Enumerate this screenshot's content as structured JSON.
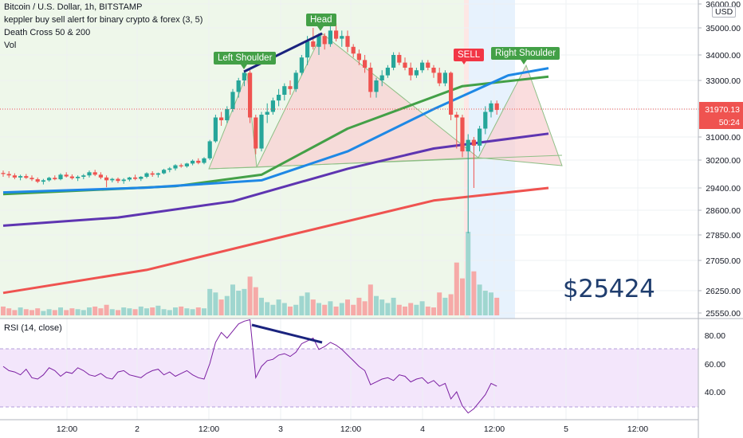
{
  "header": {
    "title": "Bitcoin / U.S. Dollar, 1h, BITSTAMP",
    "indicator_1": "keppler buy sell alert for binary crypto & forex (3, 5)",
    "indicator_2": "Death Cross 50 & 200",
    "indicator_3": "Vol"
  },
  "annotations": {
    "left_shoulder": "Left Shoulder",
    "head": "Head",
    "right_shoulder": "Right Shoulder",
    "sell": "SELL",
    "target_price": "$25424"
  },
  "price_axis": {
    "currency": "USD",
    "current_price": "31970.13",
    "countdown": "50:24"
  },
  "rsi_panel": {
    "label": "RSI (14, close)"
  },
  "colors": {
    "bull": "#26a69a",
    "bear": "#ef5350",
    "ma_green": "#43a047",
    "ma_blue": "#1e88e5",
    "ma_purple": "#5e35b1",
    "ma_red": "#ef5350",
    "divergence": "#1a237e",
    "rsi_line": "#7b1fa2",
    "tag_green": "#43a047",
    "tag_red": "#f23645"
  },
  "chart_data": {
    "type": "candlestick",
    "symbol": "Bitcoin / U.S. Dollar",
    "interval": "1h",
    "exchange": "BITSTAMP",
    "price_axis_ticks": [
      "36000.00",
      "35000.00",
      "34000.00",
      "33000.00",
      "32000.00",
      "31000.00",
      "30200.00",
      "29400.00",
      "28600.00",
      "27850.00",
      "27050.00",
      "26250.00",
      "25550.00"
    ],
    "time_axis_ticks": [
      "12:00",
      "2",
      "12:00",
      "3",
      "12:00",
      "4",
      "12:00",
      "5",
      "12:00"
    ],
    "rsi_ticks": [
      "80.00",
      "60.00",
      "40.00"
    ],
    "ohlc": [
      [
        29830,
        29900,
        29720,
        29800
      ],
      [
        29800,
        29880,
        29690,
        29760
      ],
      [
        29760,
        29820,
        29650,
        29700
      ],
      [
        29700,
        29780,
        29620,
        29740
      ],
      [
        29740,
        29800,
        29660,
        29690
      ],
      [
        29690,
        29760,
        29600,
        29650
      ],
      [
        29650,
        29700,
        29540,
        29580
      ],
      [
        29580,
        29660,
        29500,
        29620
      ],
      [
        29620,
        29720,
        29580,
        29690
      ],
      [
        29690,
        29760,
        29620,
        29650
      ],
      [
        29650,
        29820,
        29620,
        29780
      ],
      [
        29780,
        29850,
        29700,
        29730
      ],
      [
        29730,
        29790,
        29640,
        29680
      ],
      [
        29680,
        29760,
        29600,
        29720
      ],
      [
        29720,
        29800,
        29650,
        29760
      ],
      [
        29760,
        29900,
        29700,
        29850
      ],
      [
        29850,
        29920,
        29740,
        29780
      ],
      [
        29780,
        29850,
        29650,
        29700
      ],
      [
        29700,
        29760,
        29420,
        29620
      ],
      [
        29620,
        29690,
        29560,
        29660
      ],
      [
        29660,
        29700,
        29540,
        29600
      ],
      [
        29600,
        29680,
        29520,
        29640
      ],
      [
        29640,
        29720,
        29590,
        29700
      ],
      [
        29700,
        29780,
        29620,
        29660
      ],
      [
        29660,
        29740,
        29600,
        29720
      ],
      [
        29720,
        29850,
        29680,
        29820
      ],
      [
        29820,
        29880,
        29720,
        29780
      ],
      [
        29780,
        29840,
        29700,
        29820
      ],
      [
        29820,
        29950,
        29790,
        29920
      ],
      [
        29920,
        30000,
        29850,
        29960
      ],
      [
        29960,
        30080,
        29900,
        30050
      ],
      [
        30050,
        30100,
        29980,
        30020
      ],
      [
        30020,
        30120,
        29980,
        30100
      ],
      [
        30100,
        30220,
        30050,
        30180
      ],
      [
        30180,
        30260,
        30080,
        30120
      ],
      [
        30120,
        30300,
        30080,
        30260
      ],
      [
        30260,
        30900,
        30200,
        30850
      ],
      [
        30850,
        31800,
        30800,
        31700
      ],
      [
        31700,
        31900,
        31400,
        31600
      ],
      [
        31600,
        32100,
        31500,
        32000
      ],
      [
        32000,
        32700,
        31900,
        32600
      ],
      [
        32600,
        33100,
        32400,
        33000
      ],
      [
        33000,
        33350,
        32800,
        33300
      ],
      [
        33300,
        33400,
        31500,
        31700
      ],
      [
        31700,
        31800,
        30400,
        30600
      ],
      [
        30600,
        31900,
        30500,
        31800
      ],
      [
        31800,
        32200,
        31500,
        31900
      ],
      [
        31900,
        32400,
        31800,
        32300
      ],
      [
        32300,
        32700,
        32100,
        32500
      ],
      [
        32500,
        32900,
        32300,
        32800
      ],
      [
        32800,
        33000,
        32500,
        32700
      ],
      [
        32700,
        33400,
        32600,
        33300
      ],
      [
        33300,
        34000,
        33200,
        33900
      ],
      [
        33900,
        34700,
        33600,
        34500
      ],
      [
        34500,
        35000,
        34200,
        34300
      ],
      [
        34300,
        34800,
        34000,
        34700
      ],
      [
        34700,
        34800,
        34200,
        34400
      ],
      [
        34400,
        35100,
        34300,
        34900
      ],
      [
        34900,
        35200,
        34500,
        34600
      ],
      [
        34600,
        34900,
        34300,
        34700
      ],
      [
        34700,
        34900,
        34100,
        34300
      ],
      [
        34300,
        34400,
        33900,
        34050
      ],
      [
        34050,
        34200,
        33600,
        33800
      ],
      [
        33800,
        34000,
        33300,
        33500
      ],
      [
        33500,
        33700,
        32400,
        32600
      ],
      [
        32600,
        33100,
        32400,
        33000
      ],
      [
        33000,
        33400,
        32800,
        33200
      ],
      [
        33200,
        33600,
        33100,
        33500
      ],
      [
        33500,
        34100,
        33400,
        34000
      ],
      [
        34000,
        34100,
        33600,
        33700
      ],
      [
        33700,
        33900,
        33400,
        33500
      ],
      [
        33500,
        33700,
        33000,
        33200
      ],
      [
        33200,
        33500,
        33100,
        33400
      ],
      [
        33400,
        33800,
        33300,
        33700
      ],
      [
        33700,
        33800,
        33400,
        33500
      ],
      [
        33500,
        33600,
        33100,
        33300
      ],
      [
        33300,
        33500,
        32800,
        32900
      ],
      [
        32900,
        33400,
        32800,
        33300
      ],
      [
        33300,
        33350,
        31600,
        31800
      ],
      [
        31800,
        31900,
        30600,
        31700
      ],
      [
        31700,
        31800,
        30300,
        30500
      ],
      [
        30500,
        31100,
        27900,
        30900
      ],
      [
        30900,
        31000,
        29400,
        30700
      ],
      [
        30700,
        31400,
        30500,
        31300
      ],
      [
        31300,
        32100,
        31100,
        31900
      ],
      [
        31900,
        32300,
        31700,
        32200
      ],
      [
        32200,
        32300,
        31800,
        31970
      ]
    ],
    "volume": [
      10,
      8,
      6,
      9,
      7,
      6,
      8,
      5,
      7,
      6,
      9,
      6,
      8,
      7,
      6,
      9,
      10,
      8,
      12,
      7,
      6,
      9,
      8,
      7,
      10,
      8,
      9,
      11,
      7,
      6,
      9,
      10,
      8,
      7,
      9,
      8,
      30,
      26,
      18,
      22,
      35,
      28,
      30,
      44,
      32,
      20,
      15,
      12,
      18,
      14,
      10,
      12,
      22,
      26,
      18,
      14,
      12,
      16,
      10,
      14,
      18,
      12,
      20,
      16,
      35,
      22,
      18,
      14,
      20,
      12,
      10,
      14,
      12,
      16,
      10,
      9,
      26,
      20,
      24,
      60,
      42,
      95,
      50,
      35,
      28,
      26,
      20
    ],
    "rsi": [
      58,
      55,
      54,
      52,
      56,
      50,
      49,
      52,
      57,
      55,
      51,
      54,
      53,
      57,
      55,
      52,
      51,
      53,
      50,
      49,
      54,
      55,
      52,
      51,
      50,
      53,
      55,
      56,
      52,
      54,
      51,
      53,
      55,
      52,
      50,
      49,
      60,
      75,
      82,
      78,
      83,
      88,
      90,
      91,
      50,
      58,
      62,
      63,
      66,
      67,
      65,
      68,
      74,
      76,
      78,
      70,
      72,
      75,
      73,
      70,
      66,
      62,
      58,
      55,
      45,
      47,
      49,
      50,
      48,
      52,
      51,
      47,
      49,
      50,
      46,
      48,
      44,
      46,
      35,
      40,
      30,
      25,
      28,
      33,
      38,
      46,
      44
    ],
    "ma_green": [
      [
        0,
        29180
      ],
      [
        30,
        29450
      ],
      [
        45,
        29780
      ],
      [
        60,
        31300
      ],
      [
        80,
        32800
      ],
      [
        95,
        33150
      ]
    ],
    "ma_blue": [
      [
        0,
        29240
      ],
      [
        25,
        29410
      ],
      [
        45,
        29620
      ],
      [
        60,
        30500
      ],
      [
        75,
        32000
      ],
      [
        88,
        33200
      ],
      [
        95,
        33480
      ]
    ],
    "ma_purple": [
      [
        0,
        28130
      ],
      [
        20,
        28380
      ],
      [
        40,
        28920
      ],
      [
        60,
        29950
      ],
      [
        75,
        30600
      ],
      [
        95,
        31120
      ]
    ],
    "ma_red": [
      [
        0,
        26180
      ],
      [
        25,
        26800
      ],
      [
        50,
        27850
      ],
      [
        75,
        28950
      ],
      [
        95,
        29400
      ]
    ]
  }
}
